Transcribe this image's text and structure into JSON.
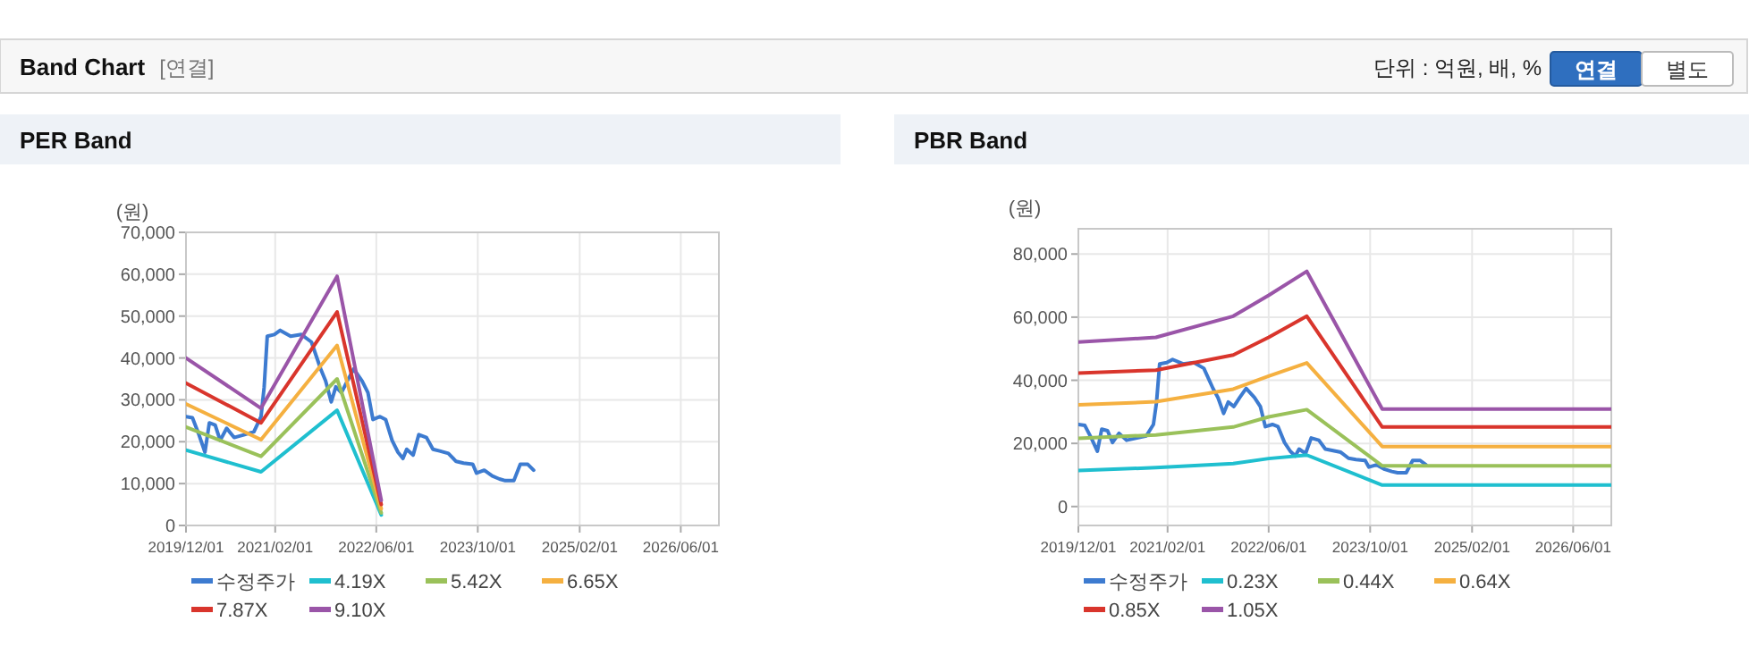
{
  "chart_data": [
    {
      "type": "other",
      "title": "Band Chart",
      "annotations": [
        "[연결]",
        "단위 : 억원, 배, %",
        "연결",
        "별도"
      ]
    },
    {
      "type": "line",
      "title": "PER Band",
      "ylabel": "(원)",
      "grid": true,
      "legend": "bottom",
      "marker": "none",
      "line_style": "solid",
      "xlim": [
        "2019-12-01",
        "2026-12-01"
      ],
      "xticks": [
        {
          "value": "2019-12-01",
          "label": "2019/12/01"
        },
        {
          "value": "2021-02-01",
          "label": "2021/02/01"
        },
        {
          "value": "2022-06-01",
          "label": "2022/06/01"
        },
        {
          "value": "2023-10-01",
          "label": "2023/10/01"
        },
        {
          "value": "2025-02-01",
          "label": "2025/02/01"
        },
        {
          "value": "2026-06-01",
          "label": "2026/06/01"
        }
      ],
      "ylim": [
        0,
        70000
      ],
      "yticks": [
        {
          "value": 0,
          "label": "0"
        },
        {
          "value": 10000,
          "label": "10,000"
        },
        {
          "value": 20000,
          "label": "20,000"
        },
        {
          "value": 30000,
          "label": "30,000"
        },
        {
          "value": 40000,
          "label": "40,000"
        },
        {
          "value": 50000,
          "label": "50,000"
        },
        {
          "value": 60000,
          "label": "60,000"
        },
        {
          "value": 70000,
          "label": "70,000"
        }
      ],
      "series": [
        {
          "name": "수정주가",
          "color": "#3d7bd0",
          "x": [
            "2019-12-01",
            "2020-01-01",
            "2020-02-01",
            "2020-03-01",
            "2020-03-22",
            "2020-04-19",
            "2020-05-13",
            "2020-06-13",
            "2020-07-19",
            "2020-09-07",
            "2020-10-22",
            "2020-11-25",
            "2020-12-10",
            "2020-12-25",
            "2021-01-28",
            "2021-02-25",
            "2021-04-16",
            "2021-06-07",
            "2021-07-25",
            "2021-09-07",
            "2021-10-01",
            "2021-10-28",
            "2021-11-19",
            "2021-12-16",
            "2022-01-13",
            "2022-02-13",
            "2022-03-25",
            "2022-04-22",
            "2022-05-16",
            "2022-06-19",
            "2022-07-16",
            "2022-08-16",
            "2022-09-13",
            "2022-10-07",
            "2022-10-25",
            "2022-11-25",
            "2022-12-22",
            "2023-01-28",
            "2023-02-28",
            "2023-04-01",
            "2023-05-13",
            "2023-06-19",
            "2023-07-25",
            "2023-09-07",
            "2023-09-25",
            "2023-11-01",
            "2023-12-10",
            "2024-01-13",
            "2024-02-10",
            "2024-03-22",
            "2024-04-22",
            "2024-05-28",
            "2024-06-25"
          ],
          "values": [
            26000,
            25700,
            21700,
            17500,
            24500,
            24000,
            20300,
            23200,
            21000,
            21700,
            22400,
            26000,
            33000,
            45200,
            45600,
            46600,
            45200,
            45600,
            43800,
            37400,
            34500,
            29500,
            33100,
            31700,
            34500,
            37400,
            34500,
            31700,
            25300,
            26000,
            25300,
            20300,
            17500,
            16000,
            18200,
            16800,
            21700,
            21000,
            18200,
            17800,
            17200,
            15300,
            14900,
            14600,
            12500,
            13200,
            11800,
            11100,
            10700,
            10700,
            14600,
            14600,
            13200
          ]
        },
        {
          "name": "4.19X",
          "color": "#1fbfcf",
          "x": [
            "2019-12-01",
            "2020-11-25",
            "2021-11-25",
            "2022-06-25"
          ],
          "values": [
            18000,
            12800,
            27500,
            2500
          ]
        },
        {
          "name": "5.42X",
          "color": "#9ac15a",
          "x": [
            "2019-12-01",
            "2020-11-25",
            "2021-11-25",
            "2022-06-25"
          ],
          "values": [
            23500,
            16500,
            35000,
            3000
          ]
        },
        {
          "name": "6.65X",
          "color": "#f5b040",
          "x": [
            "2019-12-01",
            "2020-11-25",
            "2021-11-25",
            "2022-06-25"
          ],
          "values": [
            29000,
            20500,
            43000,
            4000
          ]
        },
        {
          "name": "7.87X",
          "color": "#d9352c",
          "x": [
            "2019-12-01",
            "2020-11-25",
            "2021-11-25",
            "2022-06-25"
          ],
          "values": [
            34000,
            24500,
            51000,
            5000
          ]
        },
        {
          "name": "9.10X",
          "color": "#9a55a8",
          "x": [
            "2019-12-01",
            "2020-11-25",
            "2021-11-25",
            "2022-06-25"
          ],
          "values": [
            40000,
            28000,
            59500,
            6000
          ]
        }
      ]
    },
    {
      "type": "line",
      "title": "PBR Band",
      "ylabel": "(원)",
      "grid": true,
      "legend": "bottom",
      "marker": "none",
      "line_style": "solid",
      "xlim": [
        "2019-12-01",
        "2026-12-01"
      ],
      "xticks": [
        {
          "value": "2019-12-01",
          "label": "2019/12/01"
        },
        {
          "value": "2021-02-01",
          "label": "2021/02/01"
        },
        {
          "value": "2022-06-01",
          "label": "2022/06/01"
        },
        {
          "value": "2023-10-01",
          "label": "2023/10/01"
        },
        {
          "value": "2025-02-01",
          "label": "2025/02/01"
        },
        {
          "value": "2026-06-01",
          "label": "2026/06/01"
        }
      ],
      "ylim": [
        -6000,
        88000
      ],
      "yticks": [
        {
          "value": 0,
          "label": "0"
        },
        {
          "value": 20000,
          "label": "20,000"
        },
        {
          "value": 40000,
          "label": "40,000"
        },
        {
          "value": 60000,
          "label": "60,000"
        },
        {
          "value": 80000,
          "label": "80,000"
        }
      ],
      "series": [
        {
          "name": "수정주가",
          "color": "#3d7bd0",
          "x": [
            "2019-12-01",
            "2020-01-01",
            "2020-02-01",
            "2020-03-01",
            "2020-03-22",
            "2020-04-19",
            "2020-05-13",
            "2020-06-13",
            "2020-07-19",
            "2020-09-07",
            "2020-10-22",
            "2020-11-25",
            "2020-12-10",
            "2020-12-25",
            "2021-01-28",
            "2021-02-25",
            "2021-04-16",
            "2021-06-07",
            "2021-07-25",
            "2021-09-07",
            "2021-10-01",
            "2021-10-28",
            "2021-11-19",
            "2021-12-16",
            "2022-01-13",
            "2022-02-13",
            "2022-03-25",
            "2022-04-22",
            "2022-05-16",
            "2022-06-19",
            "2022-07-16",
            "2022-08-16",
            "2022-09-13",
            "2022-10-07",
            "2022-10-25",
            "2022-11-25",
            "2022-12-22",
            "2023-01-28",
            "2023-02-28",
            "2023-04-01",
            "2023-05-13",
            "2023-06-19",
            "2023-07-25",
            "2023-09-07",
            "2023-09-25",
            "2023-11-01",
            "2023-12-10",
            "2024-01-13",
            "2024-02-10",
            "2024-03-22",
            "2024-04-22",
            "2024-05-28",
            "2024-06-25"
          ],
          "values": [
            26000,
            25700,
            21700,
            17500,
            24500,
            24000,
            20300,
            23200,
            21000,
            21700,
            22400,
            26000,
            33000,
            45200,
            45600,
            46600,
            45200,
            45600,
            43800,
            37400,
            34500,
            29500,
            33100,
            31700,
            34500,
            37400,
            34500,
            31700,
            25300,
            26000,
            25300,
            20300,
            17500,
            16000,
            18200,
            16800,
            21700,
            21000,
            18200,
            17800,
            17200,
            15300,
            14900,
            14600,
            12500,
            13200,
            11800,
            11100,
            10700,
            10700,
            14600,
            14600,
            13200
          ]
        },
        {
          "name": "0.23X",
          "color": "#1fbfcf",
          "x": [
            "2019-12-01",
            "2020-12-07",
            "2021-12-13",
            "2022-06-01",
            "2022-12-01",
            "2023-11-28",
            "2026-12-01"
          ],
          "values": [
            11400,
            12300,
            13600,
            15200,
            16300,
            6800,
            6800
          ]
        },
        {
          "name": "0.44X",
          "color": "#9ac15a",
          "x": [
            "2019-12-01",
            "2020-12-07",
            "2021-12-13",
            "2022-06-01",
            "2022-12-01",
            "2023-11-28",
            "2026-12-01"
          ],
          "values": [
            21600,
            22700,
            25200,
            28400,
            30700,
            12900,
            12900
          ]
        },
        {
          "name": "0.64X",
          "color": "#f5b040",
          "x": [
            "2019-12-01",
            "2020-12-07",
            "2021-12-13",
            "2022-06-01",
            "2022-12-01",
            "2023-11-28",
            "2026-12-01"
          ],
          "values": [
            32200,
            33200,
            37200,
            41300,
            45500,
            19000,
            19000
          ]
        },
        {
          "name": "0.85X",
          "color": "#d9352c",
          "x": [
            "2019-12-01",
            "2020-12-07",
            "2021-12-13",
            "2022-06-01",
            "2022-12-01",
            "2023-11-28",
            "2026-12-01"
          ],
          "values": [
            42300,
            43200,
            48000,
            53600,
            60300,
            25200,
            25200
          ]
        },
        {
          "name": "1.05X",
          "color": "#9a55a8",
          "x": [
            "2019-12-01",
            "2020-12-07",
            "2021-12-13",
            "2022-06-01",
            "2022-12-01",
            "2023-11-28",
            "2026-12-01"
          ],
          "values": [
            52100,
            53600,
            60300,
            66900,
            74500,
            30900,
            30900
          ]
        }
      ]
    }
  ]
}
